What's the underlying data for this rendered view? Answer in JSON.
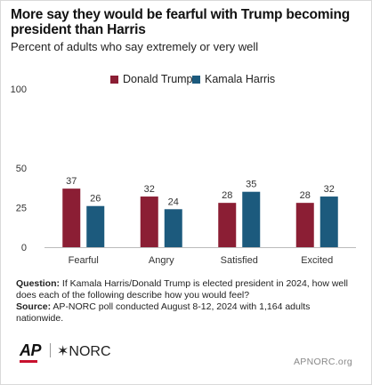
{
  "title": "More say they would be fearful with Trump becoming president than Harris",
  "subtitle": "Percent of adults who say extremely or very well",
  "chart_data": {
    "type": "bar",
    "categories": [
      "Fearful",
      "Angry",
      "Satisfied",
      "Excited"
    ],
    "series": [
      {
        "name": "Donald Trump",
        "color": "#8b1e34",
        "values": [
          37,
          32,
          28,
          28
        ]
      },
      {
        "name": "Kamala Harris",
        "color": "#1c5a7d",
        "values": [
          26,
          24,
          35,
          32
        ]
      }
    ],
    "ylim": [
      0,
      100
    ],
    "yticks": [
      0,
      25,
      50,
      100
    ],
    "legend_position": "top-center",
    "grid": false
  },
  "notes": {
    "question_label": "Question:",
    "question_text": " If Kamala Harris/Donald Trump is elected president in 2024, how well does each of the following describe how you would feel?",
    "source_label": "Source:",
    "source_text": " AP-NORC poll conducted August 8-12, 2024 with 1,164 adults nationwide."
  },
  "logos": {
    "ap": "AP",
    "norc": "✶NORC"
  },
  "site": "APNORC.org"
}
